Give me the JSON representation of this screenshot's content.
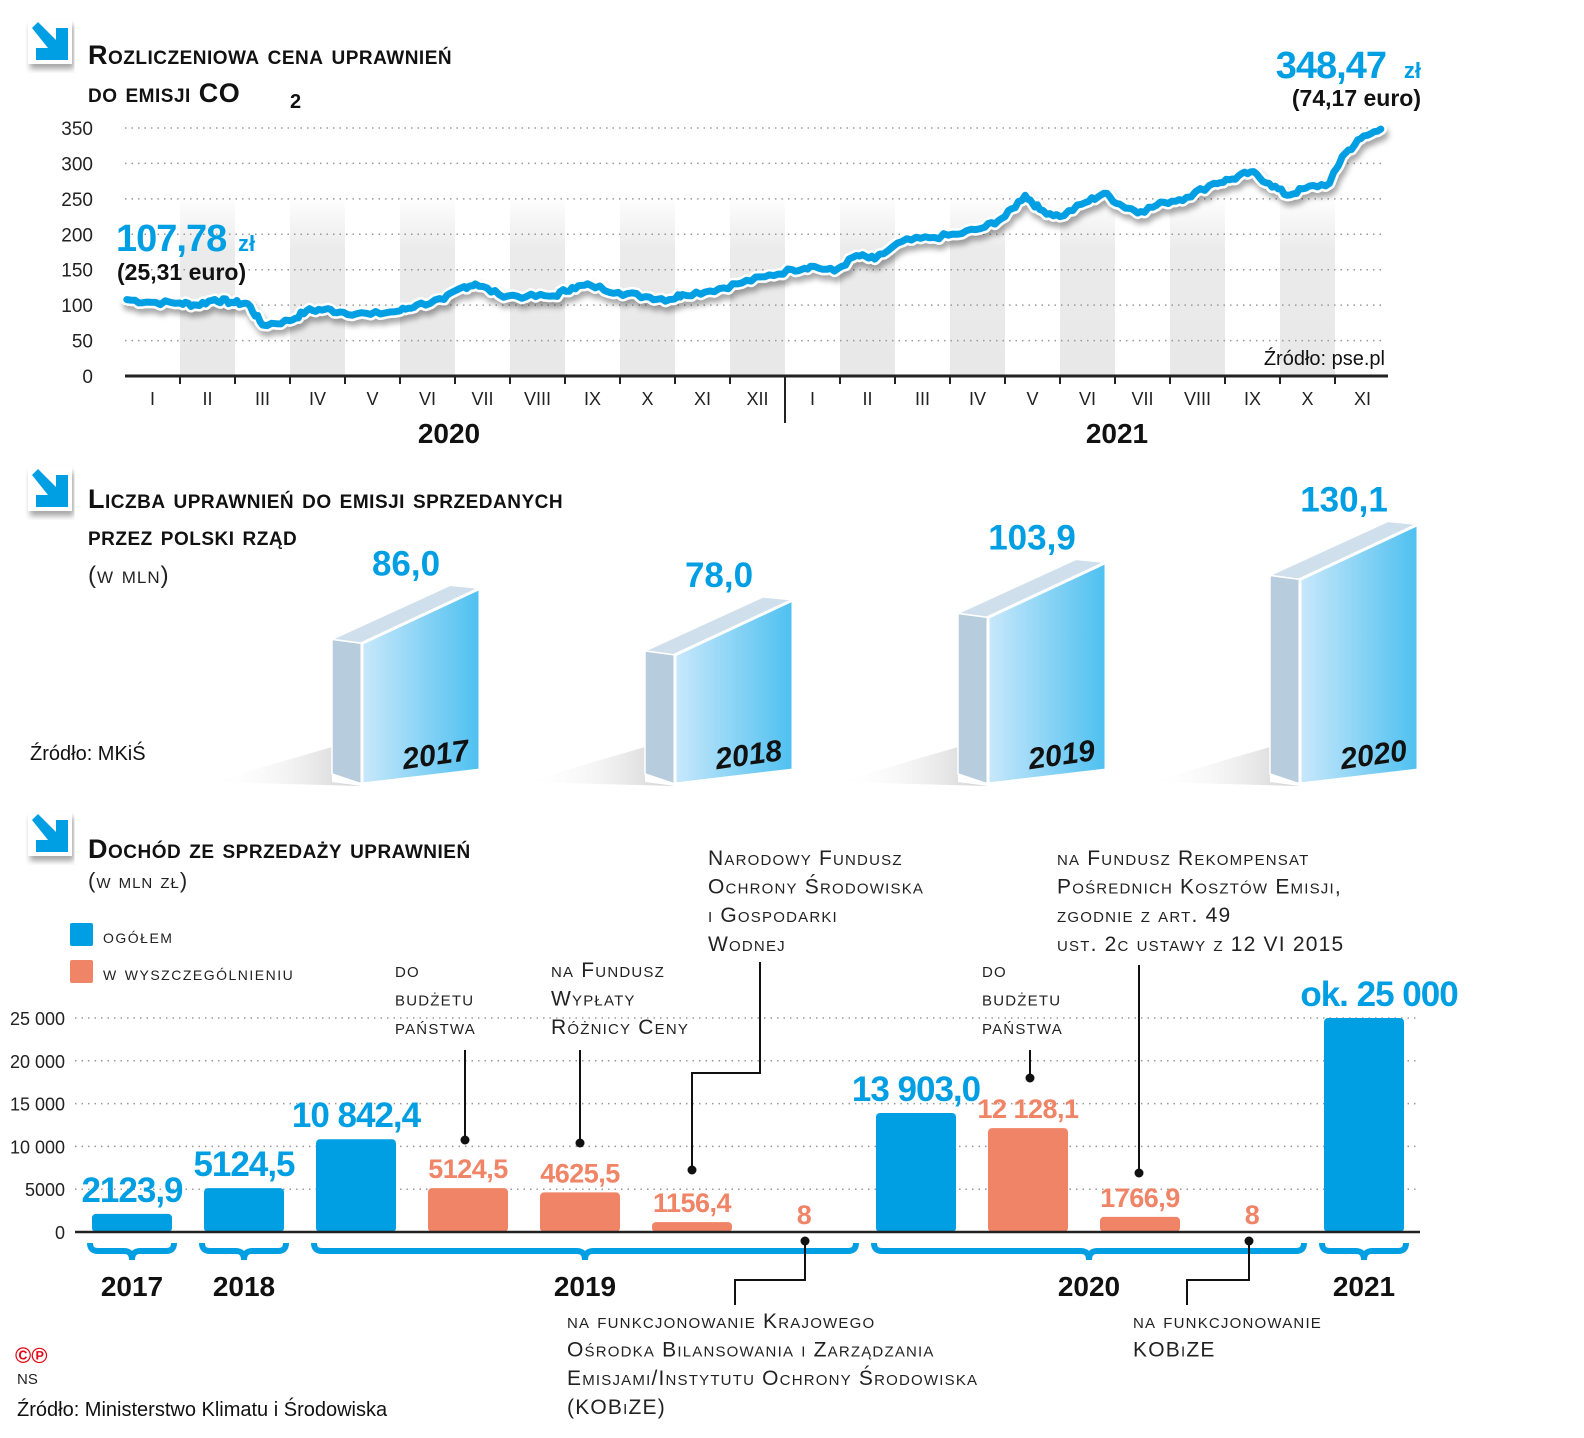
{
  "colors": {
    "blue": "#009fe3",
    "salmon": "#f08466",
    "box_side": "#b7cddd",
    "band": "#ebebeb"
  },
  "icons": [
    "arrow-down-right-icon",
    "arrow-down-right-icon",
    "arrow-down-right-icon"
  ],
  "chart_data": [
    {
      "type": "line",
      "title_lines": [
        "Rozliczeniowa cena uprawnień",
        "do emisji CO"
      ],
      "title_subscript": "2",
      "ylim": [
        0,
        350
      ],
      "yticks": [
        0,
        50,
        100,
        150,
        200,
        250,
        300,
        350
      ],
      "grid": true,
      "xtick_labels": [
        "I",
        "II",
        "III",
        "IV",
        "V",
        "VI",
        "VII",
        "VIII",
        "IX",
        "X",
        "XI",
        "XII",
        "I",
        "II",
        "III",
        "IV",
        "V",
        "VI",
        "VII",
        "VIII",
        "IX",
        "X",
        "XI"
      ],
      "year_labels": [
        "2020",
        "2021"
      ],
      "start_label": {
        "value": "107,78",
        "unit": "zł",
        "euro": "(25,31 euro)"
      },
      "end_label": {
        "value": "348,47",
        "unit": "zł",
        "euro": "(74,17 euro)"
      },
      "source": "Źródło: pse.pl",
      "series": [
        {
          "x": [
            "2020-01-02",
            "2020-01-15",
            "2020-01-31",
            "2020-02-10",
            "2020-02-20",
            "2020-02-29",
            "2020-03-08",
            "2020-03-16",
            "2020-03-31",
            "2020-04-10",
            "2020-04-20",
            "2020-04-30",
            "2020-05-15",
            "2020-05-31",
            "2020-06-10",
            "2020-06-25",
            "2020-07-05",
            "2020-07-12",
            "2020-07-25",
            "2020-08-10",
            "2020-08-25",
            "2020-09-05",
            "2020-09-15",
            "2020-09-30",
            "2020-10-15",
            "2020-10-28",
            "2020-11-05",
            "2020-11-20",
            "2020-12-05",
            "2020-12-20",
            "2021-01-05",
            "2021-01-15",
            "2021-01-28",
            "2021-02-10",
            "2021-02-20",
            "2021-03-05",
            "2021-03-20",
            "2021-04-05",
            "2021-04-20",
            "2021-05-01",
            "2021-05-12",
            "2021-05-20",
            "2021-06-01",
            "2021-06-15",
            "2021-06-25",
            "2021-07-05",
            "2021-07-15",
            "2021-07-28",
            "2021-08-10",
            "2021-08-25",
            "2021-09-05",
            "2021-09-15",
            "2021-09-25",
            "2021-10-05",
            "2021-10-15",
            "2021-10-28",
            "2021-11-05",
            "2021-11-15",
            "2021-11-26"
          ],
          "y": [
            107.78,
            104,
            103,
            100,
            108,
            104,
            102,
            72,
            78,
            92,
            94,
            90,
            87,
            92,
            100,
            108,
            125,
            130,
            115,
            112,
            113,
            125,
            128,
            118,
            112,
            108,
            115,
            120,
            130,
            140,
            150,
            155,
            148,
            170,
            165,
            190,
            195,
            200,
            210,
            225,
            255,
            235,
            225,
            245,
            258,
            240,
            232,
            245,
            252,
            272,
            278,
            288,
            272,
            255,
            265,
            272,
            310,
            335,
            348.47
          ]
        }
      ]
    },
    {
      "type": "bar",
      "style": "3d",
      "title_lines": [
        "Liczba uprawnień do emisji sprzedanych",
        "przez polski rząd"
      ],
      "subtitle": "(w mln)",
      "categories": [
        "2017",
        "2018",
        "2019",
        "2020"
      ],
      "values": [
        86.0,
        78.0,
        103.9,
        130.1
      ],
      "value_labels": [
        "86,0",
        "78,0",
        "103,9",
        "130,1"
      ],
      "source": "Źródło: MKiŚ"
    },
    {
      "type": "bar",
      "title": "Dochód ze sprzedaży uprawnień",
      "subtitle": "(w mln zł)",
      "ylim": [
        0,
        25000
      ],
      "yticks": [
        0,
        5000,
        10000,
        15000,
        20000,
        25000
      ],
      "ytick_labels": [
        "0",
        "5000",
        "10 000",
        "15 000",
        "20 000",
        "25 000"
      ],
      "grid": true,
      "legend": [
        {
          "label": "ogółem",
          "color": "#009fe3"
        },
        {
          "label": "w wyszczególnieniu",
          "color": "#f08466"
        }
      ],
      "legend_placement": "top-left",
      "bars": [
        {
          "year": "2017",
          "kind": "ogółem",
          "value": 2123.9,
          "label": "2123,9"
        },
        {
          "year": "2018",
          "kind": "ogółem",
          "value": 5124.5,
          "label": "5124,5"
        },
        {
          "year": "2019",
          "kind": "ogółem",
          "value": 10842.4,
          "label": "10 842,4"
        },
        {
          "year": "2019",
          "kind": "w wyszczególnieniu",
          "value": 5124.5,
          "label": "5124,5"
        },
        {
          "year": "2019",
          "kind": "w wyszczególnieniu",
          "value": 4625.5,
          "label": "4625,5"
        },
        {
          "year": "2019",
          "kind": "w wyszczególnieniu",
          "value": 1156.4,
          "label": "1156,4"
        },
        {
          "year": "2019",
          "kind": "w wyszczególnieniu",
          "value": 8,
          "label": "8"
        },
        {
          "year": "2020",
          "kind": "ogółem",
          "value": 13903.0,
          "label": "13 903,0"
        },
        {
          "year": "2020",
          "kind": "w wyszczególnieniu",
          "value": 12128.1,
          "label": "12 128,1"
        },
        {
          "year": "2020",
          "kind": "w wyszczególnieniu",
          "value": 1766.9,
          "label": "1766,9"
        },
        {
          "year": "2020",
          "kind": "w wyszczególnieniu",
          "value": 8,
          "label": "8"
        },
        {
          "year": "2021",
          "kind": "ogółem",
          "value": 25000,
          "label": "ok. 25 000"
        }
      ],
      "year_groups": [
        "2017",
        "2018",
        "2019",
        "2020",
        "2021"
      ],
      "annotations": [
        {
          "bar": 3,
          "lines": [
            "do",
            "budżetu",
            "państwa"
          ]
        },
        {
          "bar": 4,
          "lines": [
            "na Fundusz",
            "Wypłaty",
            "Różnicy Ceny"
          ]
        },
        {
          "bar": 5,
          "lines": [
            "Narodowy Fundusz",
            "Ochrony Środowiska",
            "i Gospodarki",
            "Wodnej"
          ]
        },
        {
          "bar": 6,
          "lines": [
            "na funkcjonowanie Krajowego",
            "Ośrodka Bilansowania i Zarządzania",
            "Emisjami/Instytutu Ochrony Środowiska",
            "(KOBiZE)"
          ]
        },
        {
          "bar": 8,
          "lines": [
            "do",
            "budżetu",
            "państwa"
          ]
        },
        {
          "bar": 9,
          "lines": [
            "na Fundusz Rekompensat",
            "Pośrednich Kosztów Emisji,",
            "zgodnie z art. 49",
            "ust. 2c ustawy z 12 VI 2015"
          ]
        },
        {
          "bar": 10,
          "lines": [
            "na funkcjonowanie",
            "KOBiZE"
          ]
        }
      ],
      "source": "Źródło: Ministerstwo Klimatu i Środowiska"
    }
  ],
  "footer": {
    "copyright": "©℗",
    "author": "NS"
  }
}
